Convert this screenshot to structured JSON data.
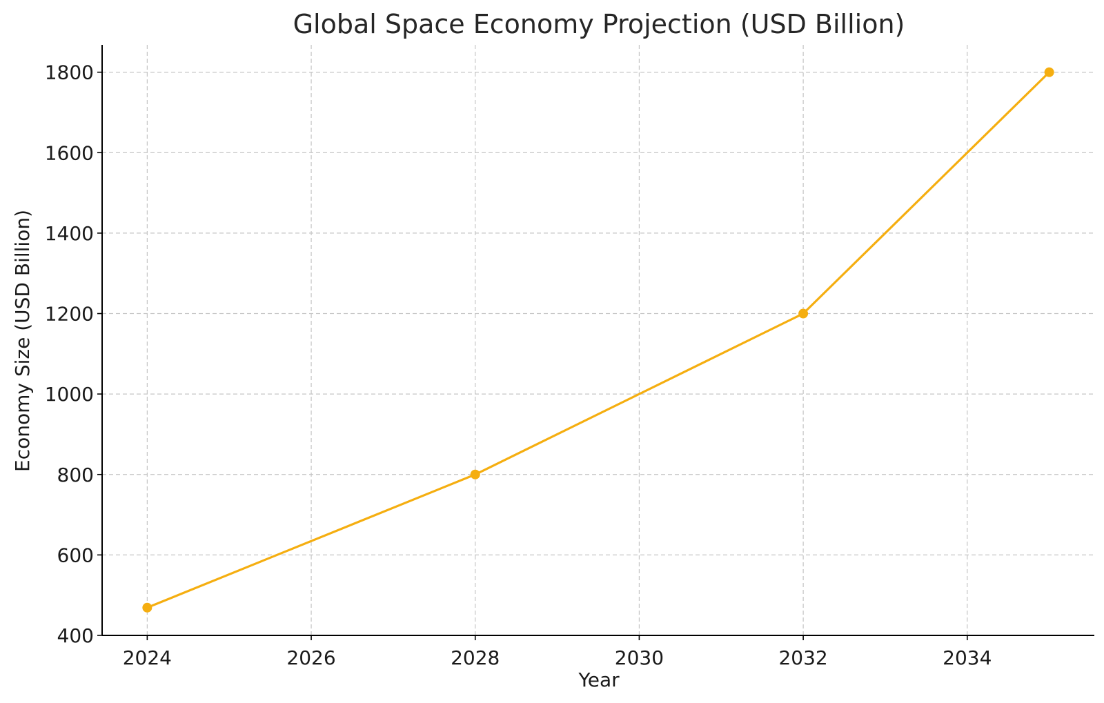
{
  "chart_data": {
    "type": "line",
    "title": "Global Space Economy Projection (USD Billion)",
    "xlabel": "Year",
    "ylabel": "Economy Size (USD Billion)",
    "xlim": [
      2023.45,
      2035.55
    ],
    "ylim": [
      400,
      1868
    ],
    "xticks": [
      2024,
      2026,
      2028,
      2030,
      2032,
      2034
    ],
    "yticks": [
      400,
      600,
      800,
      1000,
      1200,
      1400,
      1600,
      1800
    ],
    "grid": true,
    "series": [
      {
        "color": "#F5AE10",
        "marker": "circle",
        "x": [
          2024,
          2028,
          2032,
          2035
        ],
        "values": [
          469,
          800,
          1200,
          1800
        ]
      }
    ]
  }
}
